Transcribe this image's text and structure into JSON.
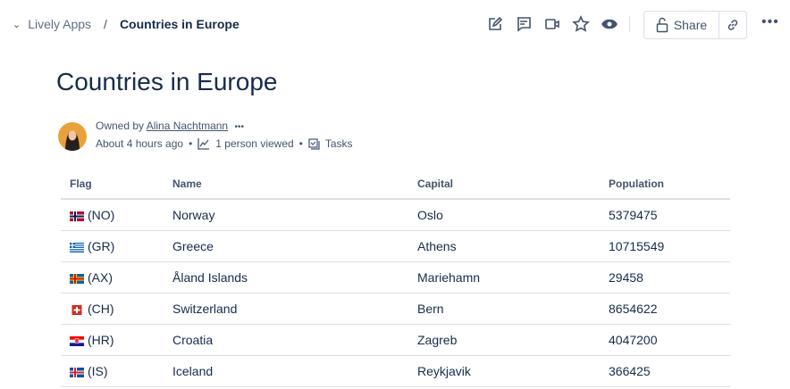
{
  "breadcrumb": {
    "space": "Lively Apps",
    "separator": "/",
    "current": "Countries in Europe"
  },
  "toolbar": {
    "icons": [
      "edit-icon",
      "comment-icon",
      "video-icon",
      "star-icon",
      "watch-icon"
    ],
    "share_label": "Share",
    "more": "•••"
  },
  "page": {
    "title": "Countries in Europe",
    "owned_by_label": "Owned by",
    "owner": "Alina Nachtmann",
    "owner_more": "•••",
    "updated": "About 4 hours ago",
    "views": "1 person viewed",
    "tasks": "Tasks"
  },
  "table": {
    "headers": [
      "Flag",
      "Name",
      "Capital",
      "Population"
    ],
    "rows": [
      {
        "flag": "(NO)",
        "name": "Norway",
        "capital": "Oslo",
        "population": "5379475"
      },
      {
        "flag": "(GR)",
        "name": "Greece",
        "capital": "Athens",
        "population": "10715549"
      },
      {
        "flag": "(AX)",
        "name": "Åland Islands",
        "capital": "Mariehamn",
        "population": "29458"
      },
      {
        "flag": "(CH)",
        "name": "Switzerland",
        "capital": "Bern",
        "population": "8654622"
      },
      {
        "flag": "(HR)",
        "name": "Croatia",
        "capital": "Zagreb",
        "population": "4047200"
      },
      {
        "flag": "(IS)",
        "name": "Iceland",
        "capital": "Reykjavik",
        "population": "366425"
      }
    ]
  }
}
